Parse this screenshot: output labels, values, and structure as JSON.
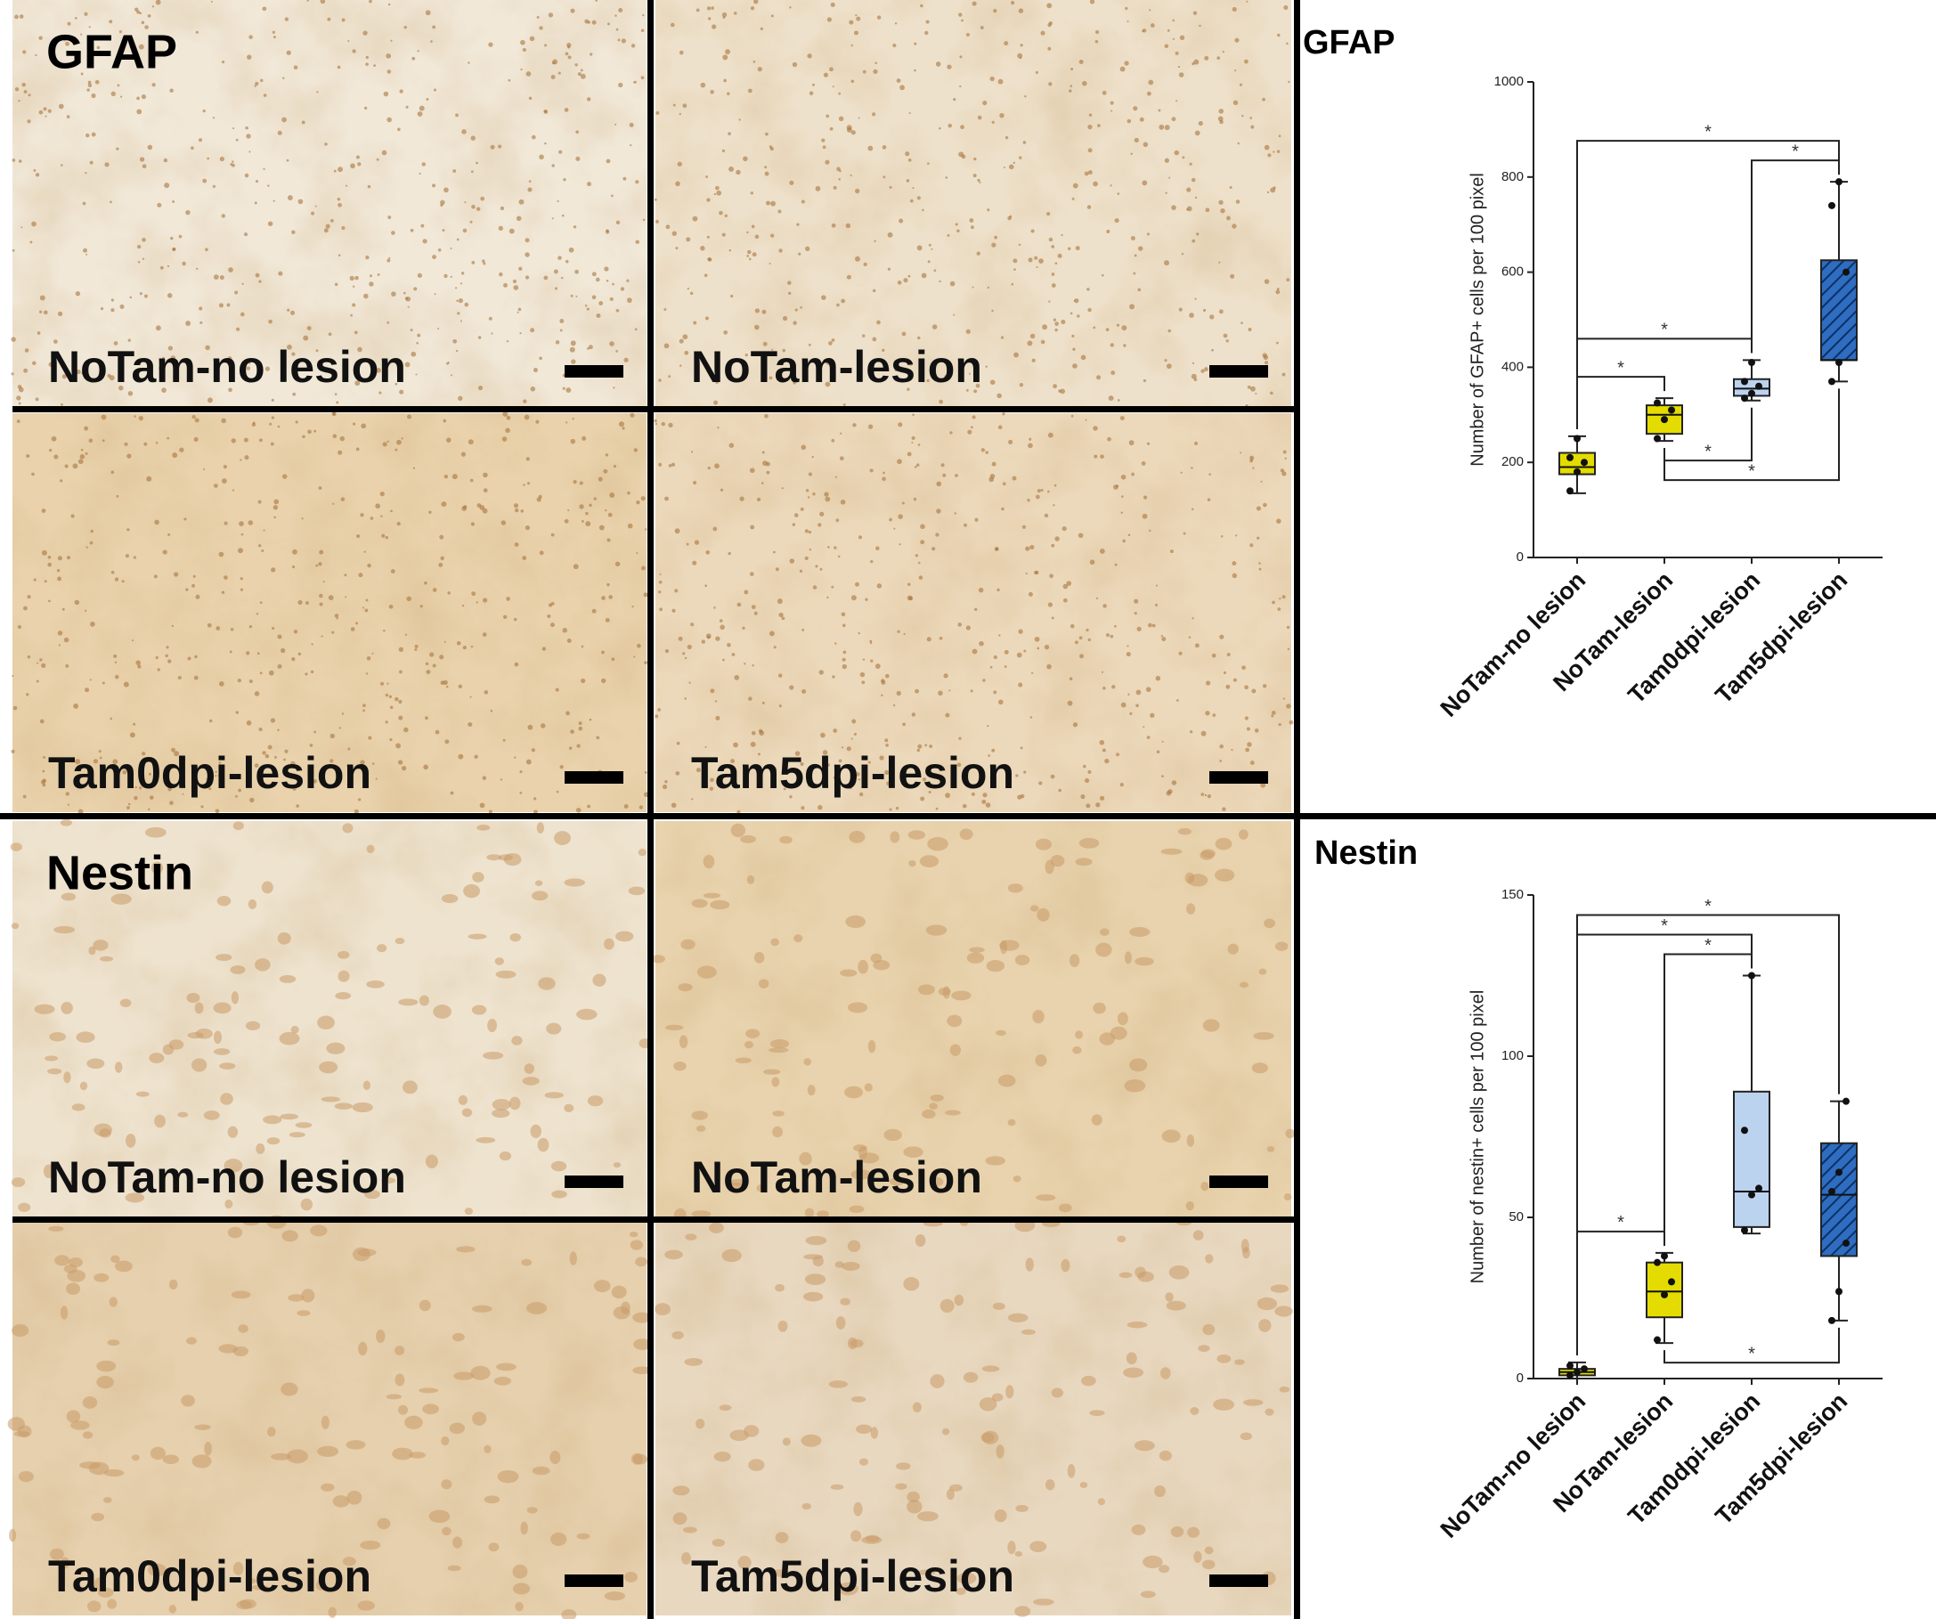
{
  "figure": {
    "sections": [
      {
        "label": "GFAP",
        "images": [
          "NoTam-no lesion",
          "NoTam-lesion",
          "Tam0dpi-lesion",
          "Tam5dpi-lesion"
        ]
      },
      {
        "label": "Nestin",
        "images": [
          "NoTam-no lesion",
          "NoTam-lesion",
          "Tam0dpi-lesion",
          "Tam5dpi-lesion"
        ]
      }
    ]
  },
  "chart_data": [
    {
      "type": "box",
      "title": "GFAP",
      "ylabel": "Number of GFAP+ cells per 100 pixel",
      "categories": [
        "NoTam-no lesion",
        "NoTam-lesion",
        "Tam0dpi-lesion",
        "Tam5dpi-lesion"
      ],
      "colors": [
        "#e4dc00",
        "#e4dc00",
        "#bcd3f0",
        "#2e6dbf"
      ],
      "hatch": [
        false,
        false,
        false,
        true
      ],
      "boxes": [
        {
          "min": 135,
          "q1": 175,
          "median": 190,
          "q3": 220,
          "max": 255,
          "points": [
            140,
            180,
            200,
            210,
            250
          ]
        },
        {
          "min": 245,
          "q1": 260,
          "median": 300,
          "q3": 320,
          "max": 335,
          "points": [
            250,
            290,
            310,
            325
          ]
        },
        {
          "min": 330,
          "q1": 340,
          "median": 355,
          "q3": 375,
          "max": 415,
          "points": [
            335,
            345,
            360,
            370,
            410
          ]
        },
        {
          "min": 370,
          "q1": 415,
          "median": 415,
          "q3": 625,
          "max": 790,
          "points": [
            370,
            410,
            600,
            740,
            790
          ]
        }
      ],
      "significance": [
        {
          "pair": [
            0,
            1
          ],
          "side": "above",
          "label": "*"
        },
        {
          "pair": [
            2,
            3
          ],
          "side": "above",
          "label": "*"
        },
        {
          "pair": [
            0,
            2
          ],
          "side": "above",
          "label": "*"
        },
        {
          "pair": [
            0,
            3
          ],
          "side": "above",
          "label": "*"
        },
        {
          "pair": [
            1,
            2
          ],
          "side": "below",
          "label": "*"
        },
        {
          "pair": [
            1,
            3
          ],
          "side": "below",
          "label": "*"
        }
      ],
      "ylim": [
        0,
        1000
      ],
      "yticks": [
        0,
        200,
        400,
        600,
        800,
        1000
      ]
    },
    {
      "type": "box",
      "title": "Nestin",
      "ylabel": "Number of nestin+ cells per 100 pixel",
      "categories": [
        "NoTam-no lesion",
        "NoTam-lesion",
        "Tam0dpi-lesion",
        "Tam5dpi-lesion"
      ],
      "colors": [
        "#e4dc00",
        "#e4dc00",
        "#bcd3f0",
        "#2e6dbf"
      ],
      "hatch": [
        false,
        false,
        false,
        true
      ],
      "boxes": [
        {
          "min": 0,
          "q1": 1,
          "median": 2,
          "q3": 3,
          "max": 5,
          "points": [
            1,
            2,
            3,
            4
          ]
        },
        {
          "min": 11,
          "q1": 19,
          "median": 27,
          "q3": 36,
          "max": 39,
          "points": [
            12,
            26,
            30,
            36,
            38
          ]
        },
        {
          "min": 45,
          "q1": 47,
          "median": 58,
          "q3": 89,
          "max": 125,
          "points": [
            46,
            57,
            59,
            77,
            125
          ]
        },
        {
          "min": 18,
          "q1": 38,
          "median": 57,
          "q3": 73,
          "max": 86,
          "points": [
            18,
            27,
            42,
            58,
            64,
            86
          ]
        }
      ],
      "significance": [
        {
          "pair": [
            0,
            1
          ],
          "side": "above",
          "label": "*"
        },
        {
          "pair": [
            1,
            2
          ],
          "side": "above",
          "label": "*"
        },
        {
          "pair": [
            0,
            2
          ],
          "side": "above",
          "label": "*"
        },
        {
          "pair": [
            0,
            3
          ],
          "side": "above",
          "label": "*"
        },
        {
          "pair": [
            1,
            3
          ],
          "side": "below",
          "label": "*"
        }
      ],
      "ylim": [
        0,
        150
      ],
      "yticks": [
        0,
        50,
        100,
        150
      ]
    }
  ]
}
